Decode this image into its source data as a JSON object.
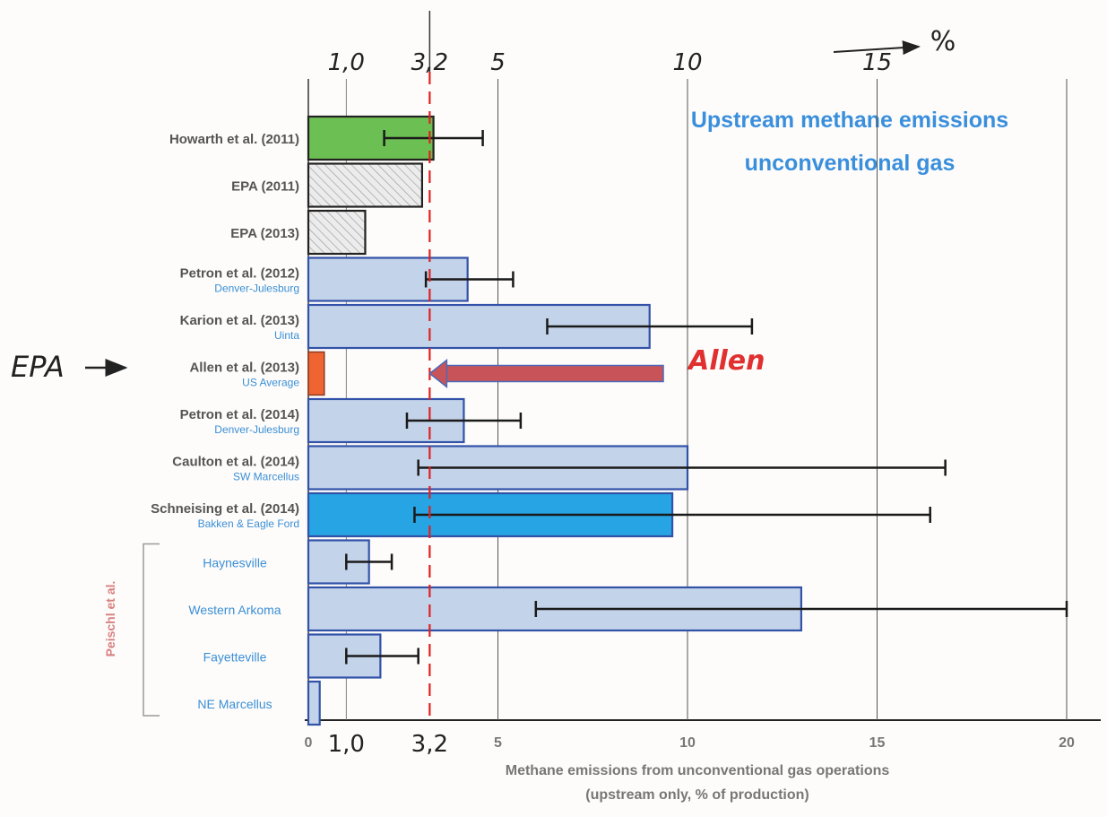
{
  "chart_data": {
    "type": "bar",
    "orientation": "horizontal",
    "title": "Upstream methane emissions unconventional gas",
    "title_lines": [
      "Upstream methane emissions",
      "unconventional gas"
    ],
    "xlabel_lines": [
      "Methane emissions from unconventional gas operations",
      "(upstream only, % of production)"
    ],
    "xlim": [
      0,
      20
    ],
    "bottom_ticks": [
      {
        "value": 0,
        "label": "0"
      },
      {
        "value": 5,
        "label": "5"
      },
      {
        "value": 10,
        "label": "10"
      },
      {
        "value": 15,
        "label": "15"
      },
      {
        "value": 20,
        "label": "20"
      }
    ],
    "grid": true,
    "reference_line": {
      "value": 3.2,
      "color": "#e02020"
    },
    "handwritten": {
      "top_ticks": [
        {
          "value": 1.0,
          "label": "1,0"
        },
        {
          "value": 3.2,
          "label": "3,2"
        },
        {
          "value": 5,
          "label": "5"
        },
        {
          "value": 10,
          "label": "10"
        },
        {
          "value": 15,
          "label": "15"
        }
      ],
      "bottom_ticks": [
        {
          "value": 1.0,
          "label": "1,0"
        },
        {
          "value": 3.2,
          "label": "3,2"
        }
      ],
      "top_arrow_label": "%",
      "epa_label": "EPA",
      "allen_label": "Allen",
      "bracket_label": "Peischl et al."
    },
    "colors": {
      "blue_fill": "#c3d3e9",
      "blue_edge": "#3252a8",
      "green": "#6cbf52",
      "hatch": "#e8e8e8",
      "orange": "#f06432",
      "bright_blue": "#26a4e4",
      "label_blue": "#3b8fd6",
      "title_blue": "#3a8fdc",
      "red": "#e02020",
      "arrow_red": "#c8545a"
    },
    "bars": [
      {
        "label": "Howarth et al. (2011)",
        "sublabel": "",
        "value": 3.3,
        "err_low": 2.0,
        "err_high": 4.6,
        "style": "green"
      },
      {
        "label": "EPA (2011)",
        "sublabel": "",
        "value": 3.0,
        "style": "hatch"
      },
      {
        "label": "EPA (2013)",
        "sublabel": "",
        "value": 1.5,
        "style": "hatch"
      },
      {
        "label": "Petron et al. (2012)",
        "sublabel": "Denver-Julesburg",
        "value": 4.2,
        "err_low": 3.1,
        "err_high": 5.4,
        "style": "blue"
      },
      {
        "label": "Karion et al. (2013)",
        "sublabel": "Uinta",
        "value": 9.0,
        "err_low": 6.3,
        "err_high": 11.7,
        "style": "blue"
      },
      {
        "label": "Allen et al. (2013)",
        "sublabel": "US Average",
        "value": 0.42,
        "style": "orange"
      },
      {
        "label": "Petron et al. (2014)",
        "sublabel": "Denver-Julesburg",
        "value": 4.1,
        "err_low": 2.6,
        "err_high": 5.6,
        "style": "blue"
      },
      {
        "label": "Caulton et al. (2014)",
        "sublabel": "SW Marcellus",
        "value": 10.0,
        "err_low": 2.9,
        "err_high": 16.8,
        "style": "blue"
      },
      {
        "label": "Schneising et al. (2014)",
        "sublabel": "Bakken & Eagle Ford",
        "value": 9.6,
        "err_low": 2.8,
        "err_high": 16.4,
        "style": "brightblue"
      },
      {
        "label": "",
        "sublabel": "Haynesville",
        "value": 1.6,
        "err_low": 1.0,
        "err_high": 2.2,
        "style": "blue"
      },
      {
        "label": "",
        "sublabel": "Western Arkoma",
        "value": 13.0,
        "err_low": 6.0,
        "err_high": 20.0,
        "style": "blue"
      },
      {
        "label": "",
        "sublabel": "Fayetteville",
        "value": 1.9,
        "err_low": 1.0,
        "err_high": 2.9,
        "style": "blue"
      },
      {
        "label": "",
        "sublabel": "NE Marcellus",
        "value": 0.3,
        "style": "blue"
      }
    ]
  }
}
